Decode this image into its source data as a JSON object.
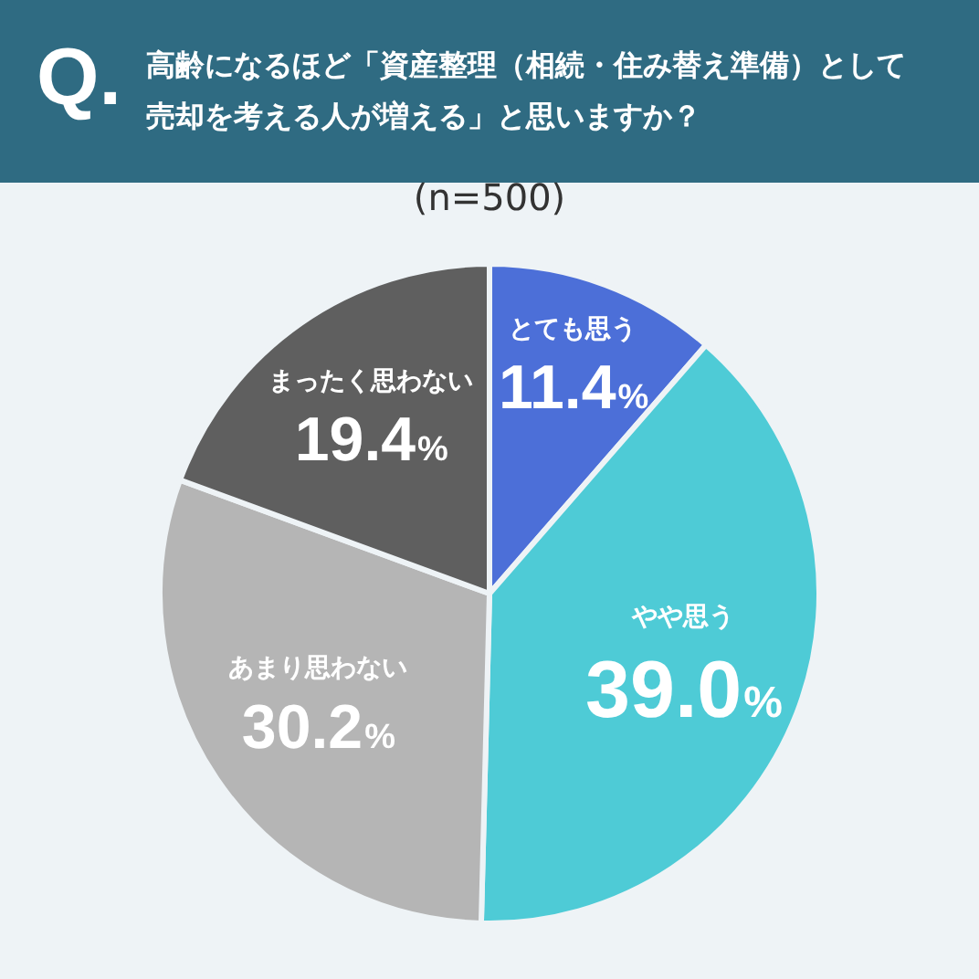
{
  "chart_data": {
    "type": "pie",
    "title": "高齢になるほど「資産整理（相続・住み替え準備）として売却を考える人が増える」と思いますか？",
    "subtitle": "(n=500)",
    "annotations": [
      "Q."
    ],
    "categories": [
      "とても思う",
      "やや思う",
      "あまり思わない",
      "まったく思わない"
    ],
    "values": [
      11.4,
      39.0,
      30.2,
      19.4
    ],
    "colors": [
      "#4c6fd8",
      "#4ecbd6",
      "#b5b5b5",
      "#5f5f5f"
    ],
    "value_labels": [
      "11.4%",
      "39.0%",
      "30.2%",
      "19.4%"
    ],
    "legend": false
  }
}
